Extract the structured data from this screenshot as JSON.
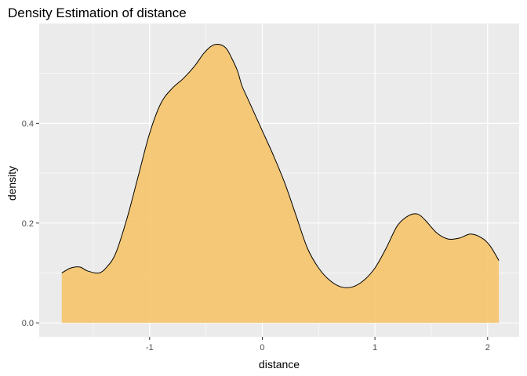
{
  "chart_data": {
    "type": "area",
    "title": "Density Estimation of distance",
    "xlabel": "distance",
    "ylabel": "density",
    "xlim": [
      -1.98,
      2.28
    ],
    "ylim": [
      -0.028,
      0.6
    ],
    "x_ticks": [
      -1,
      0,
      1,
      2
    ],
    "x_tick_labels": [
      "-1",
      "0",
      "1",
      "2"
    ],
    "y_ticks": [
      0.0,
      0.2,
      0.4
    ],
    "y_tick_labels": [
      "0.0",
      "0.2",
      "0.4"
    ],
    "grid": true,
    "colors": {
      "panel": "#ebebeb",
      "grid": "#ffffff",
      "fill": "#f5c46a",
      "outline": "#000000",
      "tick": "#333333"
    },
    "series": [
      {
        "x": [
          -1.78,
          -1.7,
          -1.62,
          -1.55,
          -1.45,
          -1.38,
          -1.3,
          -1.2,
          -1.1,
          -1.0,
          -0.9,
          -0.8,
          -0.7,
          -0.6,
          -0.52,
          -0.45,
          -0.38,
          -0.32,
          -0.27,
          -0.22,
          -0.18,
          -0.12,
          -0.05,
          0.0,
          0.1,
          0.2,
          0.3,
          0.4,
          0.5,
          0.6,
          0.7,
          0.8,
          0.9,
          1.0,
          1.1,
          1.2,
          1.3,
          1.38,
          1.45,
          1.55,
          1.65,
          1.75,
          1.85,
          1.95,
          2.02,
          2.1
        ],
        "y": [
          0.1,
          0.11,
          0.112,
          0.104,
          0.1,
          0.112,
          0.14,
          0.21,
          0.295,
          0.38,
          0.44,
          0.47,
          0.49,
          0.515,
          0.54,
          0.555,
          0.558,
          0.55,
          0.53,
          0.505,
          0.475,
          0.445,
          0.41,
          0.385,
          0.335,
          0.28,
          0.215,
          0.15,
          0.11,
          0.085,
          0.072,
          0.072,
          0.085,
          0.11,
          0.15,
          0.195,
          0.215,
          0.218,
          0.205,
          0.18,
          0.168,
          0.17,
          0.178,
          0.17,
          0.155,
          0.125
        ]
      }
    ]
  }
}
